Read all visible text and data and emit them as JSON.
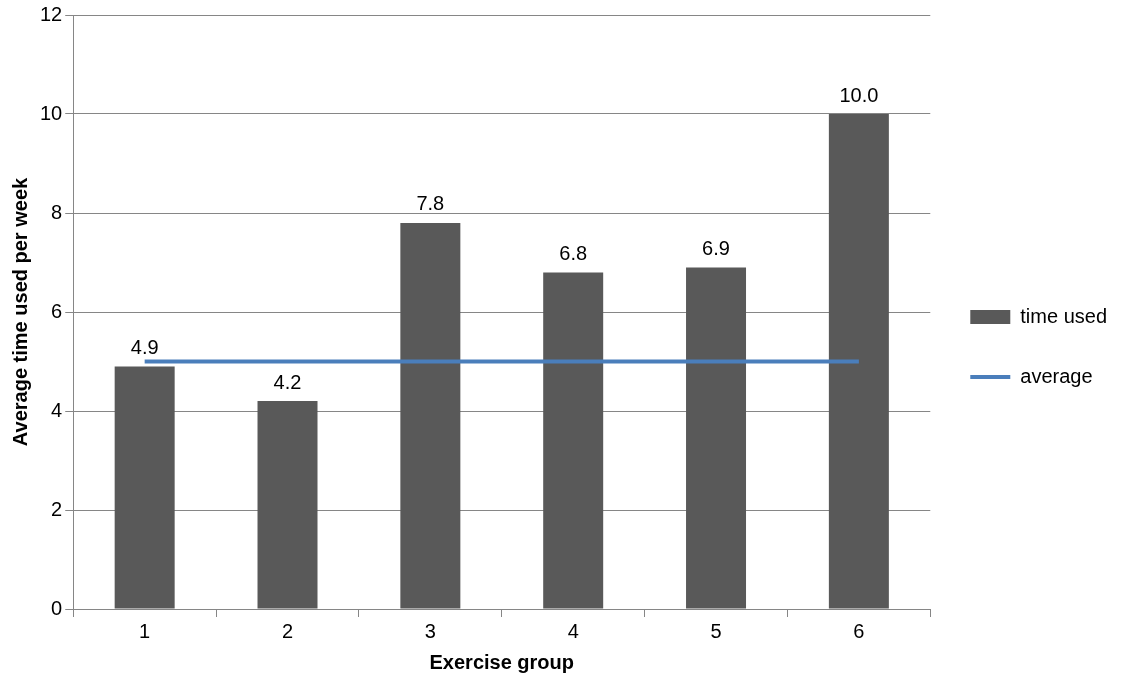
{
  "chart_data": {
    "type": "bar",
    "xlabel": "Exercise group",
    "ylabel": "Average time used per week",
    "categories": [
      "1",
      "2",
      "3",
      "4",
      "5",
      "6"
    ],
    "series": [
      {
        "name": "time used",
        "color": "#595959",
        "values": [
          4.9,
          4.2,
          7.8,
          6.8,
          6.9,
          10.0
        ],
        "value_labels": [
          "4.9",
          "4.2",
          "7.8",
          "6.8",
          "6.9",
          "10.0"
        ]
      },
      {
        "name": "average",
        "type": "line",
        "color": "#4a7ebb",
        "values": [
          5,
          5,
          5,
          5,
          5,
          5
        ]
      }
    ],
    "ylim": [
      0,
      12
    ],
    "yticks": [
      0,
      2,
      4,
      6,
      8,
      10,
      12
    ],
    "grid": "y",
    "legend": "right",
    "marker": "none",
    "line_style": "solid"
  }
}
